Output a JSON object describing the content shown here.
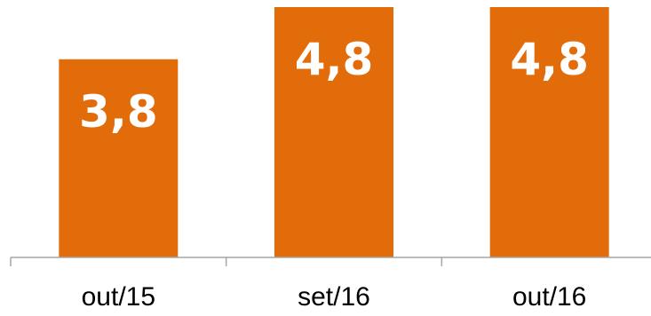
{
  "chart_data": {
    "type": "bar",
    "categories": [
      "out/15",
      "set/16",
      "out/16"
    ],
    "values": [
      3.8,
      4.8,
      4.8
    ],
    "value_labels": [
      "3,8",
      "4,8",
      "4,8"
    ],
    "title": "",
    "xlabel": "",
    "ylabel": "",
    "ylim": [
      0,
      4.8
    ],
    "grid": false,
    "legend": "none",
    "bar_color": "#E36C0A",
    "axis_color": "#A6A6A6"
  }
}
